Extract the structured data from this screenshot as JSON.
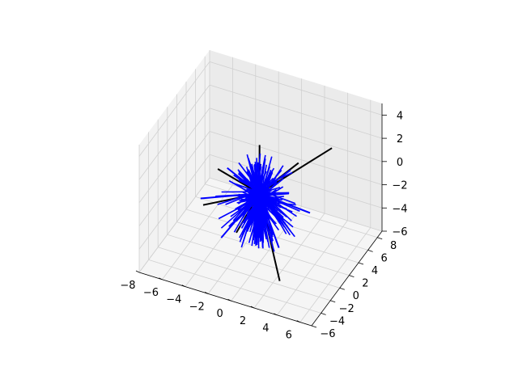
{
  "chart_data": {
    "type": "line",
    "subtype": "3d-random-walk-star",
    "title": "",
    "xlabel": "",
    "ylabel": "",
    "zlabel": "",
    "xlim": [
      -8,
      7
    ],
    "ylim": [
      -6,
      9
    ],
    "zlim": [
      -6,
      5
    ],
    "x_ticks": [
      "−8",
      "−6",
      "−4",
      "−2",
      "0",
      "2",
      "4",
      "6"
    ],
    "y_ticks": [
      "−6",
      "−4",
      "−2",
      "0",
      "2",
      "4",
      "6",
      "8"
    ],
    "z_ticks": [
      "−6",
      "−4",
      "−2",
      "0",
      "2",
      "4"
    ],
    "grid": true,
    "legend": "none",
    "series": [
      {
        "color": "#000000",
        "segments": [
          {
            "from": [
              0,
              0,
              0
            ],
            "to": [
              5.5,
              2.0,
              4.5
            ]
          },
          {
            "from": [
              0,
              0,
              0
            ],
            "to": [
              -5.5,
              1.5,
              -3.5
            ]
          },
          {
            "from": [
              0,
              0,
              0
            ],
            "to": [
              3.0,
              -3.0,
              -5.0
            ]
          },
          {
            "from": [
              0,
              0,
              0
            ],
            "to": [
              -1.0,
              2.5,
              2.5
            ]
          },
          {
            "from": [
              0,
              0,
              0
            ],
            "to": [
              -3.0,
              -1.5,
              2.0
            ]
          },
          {
            "from": [
              0,
              0,
              0
            ],
            "to": [
              3.0,
              1.0,
              3.0
            ]
          },
          {
            "from": [
              0,
              0,
              0
            ],
            "to": [
              -2.0,
              0.0,
              -4.0
            ]
          },
          {
            "from": [
              0,
              0,
              0
            ],
            "to": [
              2.0,
              -2.0,
              -3.0
            ]
          }
        ]
      },
      {
        "color": "#0000ff",
        "segments": [
          {
            "from": [
              0,
              0,
              0
            ],
            "to": [
              -4.5,
              -1.5,
              -1.0
            ]
          },
          {
            "from": [
              0,
              0,
              0
            ],
            "to": [
              4.0,
              1.0,
              -1.0
            ]
          },
          {
            "from": [
              0,
              0,
              0
            ],
            "to": [
              -1.0,
              -2.0,
              2.5
            ]
          },
          {
            "from": [
              0,
              0,
              0
            ],
            "to": [
              1.5,
              0.5,
              -4.5
            ]
          },
          {
            "from": [
              0,
              0,
              0
            ],
            "to": [
              -2.5,
              -2.0,
              -3.5
            ]
          },
          {
            "from": [
              0,
              0,
              0
            ],
            "to": [
              2.5,
              0.5,
              2.5
            ]
          },
          {
            "from": [
              0,
              0,
              0
            ],
            "to": [
              -3.0,
              0.5,
              1.0
            ]
          },
          {
            "from": [
              0,
              0,
              0
            ],
            "to": [
              3.0,
              -1.0,
              1.5
            ]
          }
        ]
      }
    ]
  }
}
